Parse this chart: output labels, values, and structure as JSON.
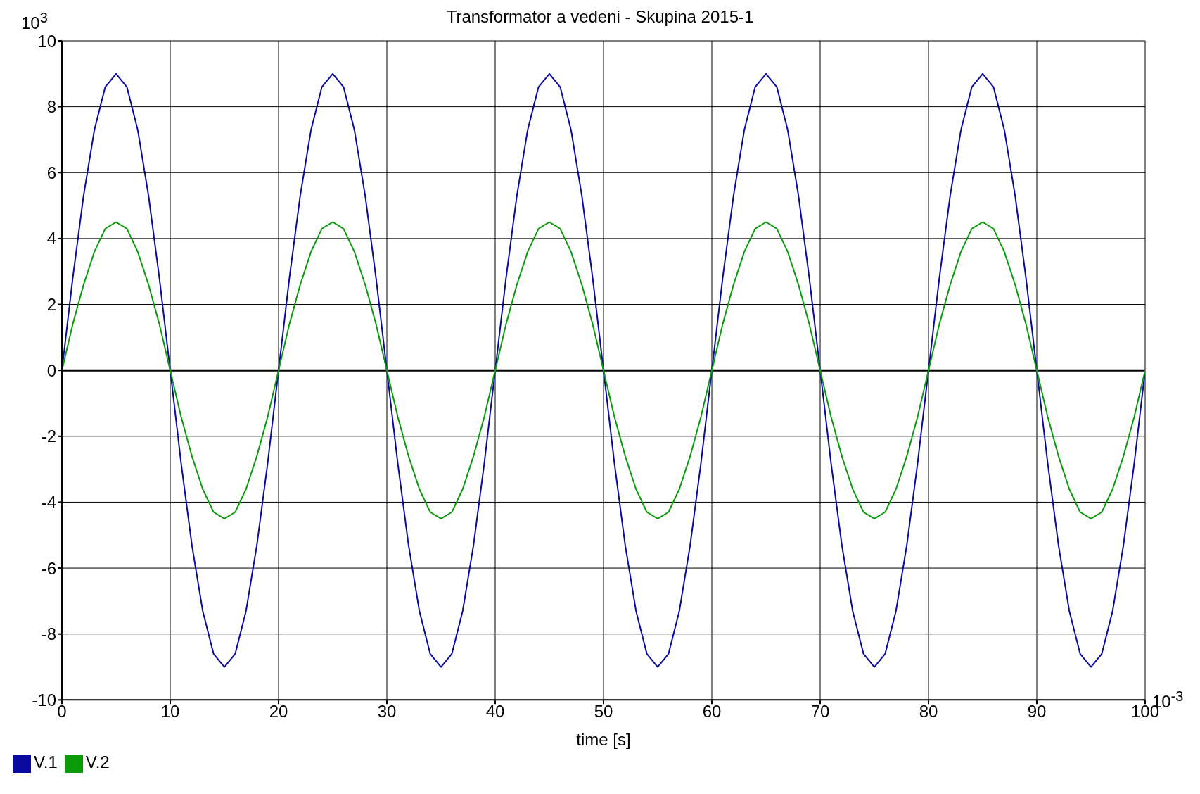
{
  "chart_data": {
    "type": "line",
    "title": "Transformator a vedeni - Skupina 2015-1",
    "xlabel": "time [s]",
    "annotations": [
      "10$^{3}$",
      "10$^{-3}$"
    ],
    "x": [
      0,
      1,
      2,
      3,
      4,
      5,
      6,
      7,
      8,
      9,
      10,
      11,
      12,
      13,
      14,
      15,
      16,
      17,
      18,
      19,
      20,
      21,
      22,
      23,
      24,
      25,
      26,
      27,
      28,
      29,
      30,
      31,
      32,
      33,
      34,
      35,
      36,
      37,
      38,
      39,
      40,
      41,
      42,
      43,
      44,
      45,
      46,
      47,
      48,
      49,
      50,
      51,
      52,
      53,
      54,
      55,
      56,
      57,
      58,
      59,
      60,
      61,
      62,
      63,
      64,
      65,
      66,
      67,
      68,
      69,
      70,
      71,
      72,
      73,
      74,
      75,
      76,
      77,
      78,
      79,
      80,
      81,
      82,
      83,
      84,
      85,
      86,
      87,
      88,
      89,
      90,
      91,
      92,
      93,
      94,
      95,
      96,
      97,
      98,
      99,
      100
    ],
    "series": [
      {
        "name": "V.1",
        "color": "#0a0aa0",
        "values": [
          0,
          2.8,
          5.3,
          7.3,
          8.6,
          9,
          8.6,
          7.3,
          5.3,
          2.8,
          0,
          -2.8,
          -5.3,
          -7.3,
          -8.6,
          -9,
          -8.6,
          -7.3,
          -5.3,
          -2.8,
          0,
          2.8,
          5.3,
          7.3,
          8.6,
          9,
          8.6,
          7.3,
          5.3,
          2.8,
          0,
          -2.8,
          -5.3,
          -7.3,
          -8.6,
          -9,
          -8.6,
          -7.3,
          -5.3,
          -2.8,
          0,
          2.8,
          5.3,
          7.3,
          8.6,
          9,
          8.6,
          7.3,
          5.3,
          2.8,
          0,
          -2.8,
          -5.3,
          -7.3,
          -8.6,
          -9,
          -8.6,
          -7.3,
          -5.3,
          -2.8,
          0,
          2.8,
          5.3,
          7.3,
          8.6,
          9,
          8.6,
          7.3,
          5.3,
          2.8,
          0,
          -2.8,
          -5.3,
          -7.3,
          -8.6,
          -9,
          -8.6,
          -7.3,
          -5.3,
          -2.8,
          0,
          2.8,
          5.3,
          7.3,
          8.6,
          9,
          8.6,
          7.3,
          5.3,
          2.8,
          0,
          -2.8,
          -5.3,
          -7.3,
          -8.6,
          -9,
          -8.6,
          -7.3,
          -5.3,
          -2.8,
          0
        ]
      },
      {
        "name": "V.2",
        "color": "#0a9a0a",
        "values": [
          0,
          1.4,
          2.6,
          3.6,
          4.3,
          4.5,
          4.3,
          3.6,
          2.6,
          1.4,
          0,
          -1.4,
          -2.6,
          -3.6,
          -4.3,
          -4.5,
          -4.3,
          -3.6,
          -2.6,
          -1.4,
          0,
          1.4,
          2.6,
          3.6,
          4.3,
          4.5,
          4.3,
          3.6,
          2.6,
          1.4,
          0,
          -1.4,
          -2.6,
          -3.6,
          -4.3,
          -4.5,
          -4.3,
          -3.6,
          -2.6,
          -1.4,
          0,
          1.4,
          2.6,
          3.6,
          4.3,
          4.5,
          4.3,
          3.6,
          2.6,
          1.4,
          0,
          -1.4,
          -2.6,
          -3.6,
          -4.3,
          -4.5,
          -4.3,
          -3.6,
          -2.6,
          -1.4,
          0,
          1.4,
          2.6,
          3.6,
          4.3,
          4.5,
          4.3,
          3.6,
          2.6,
          1.4,
          0,
          -1.4,
          -2.6,
          -3.6,
          -4.3,
          -4.5,
          -4.3,
          -3.6,
          -2.6,
          -1.4,
          0,
          1.4,
          2.6,
          3.6,
          4.3,
          4.5,
          4.3,
          3.6,
          2.6,
          1.4,
          0,
          -1.4,
          -2.6,
          -3.6,
          -4.3,
          -4.5,
          -4.3,
          -3.6,
          -2.6,
          -1.4,
          0
        ]
      }
    ],
    "xlim": [
      0,
      100
    ],
    "xticks": [
      0,
      10,
      20,
      30,
      40,
      50,
      60,
      70,
      80,
      90,
      100
    ],
    "ylim": [
      -10,
      10
    ],
    "yticks": [
      -10,
      -8,
      -6,
      -4,
      -2,
      0,
      2,
      4,
      6,
      8,
      10
    ],
    "ref_lines": [
      {
        "axis": "y",
        "value": 0,
        "color": "#000000"
      }
    ],
    "grid": true,
    "legend": "bottom left",
    "marker": "none",
    "line_style": "solid"
  }
}
